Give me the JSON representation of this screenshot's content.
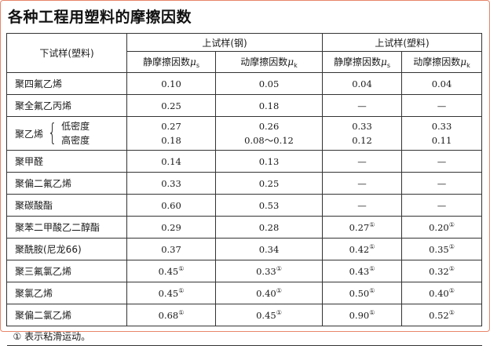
{
  "title": "各种工程用塑料的摩擦因数",
  "header": {
    "lower_sample": "下试样(塑料)",
    "upper_steel": "上试样(钢)",
    "upper_plastic": "上试样(塑料)",
    "static": "静摩擦因数",
    "dynamic": "动摩擦因数",
    "mu": "μ",
    "sub_s": "s",
    "sub_k": "k"
  },
  "rows": [
    {
      "name": "聚四氟乙烯",
      "v": [
        "0.10",
        "0.05",
        "0.04",
        "0.04"
      ],
      "fn": [
        false,
        false,
        false,
        false
      ]
    },
    {
      "name": "聚全氟乙丙烯",
      "v": [
        "0.25",
        "0.18",
        "—",
        "—"
      ],
      "fn": [
        false,
        false,
        false,
        false
      ]
    },
    {
      "name": "聚乙烯",
      "sub": [
        "低密度",
        "高密度"
      ],
      "v": [
        [
          "0.27",
          "0.18"
        ],
        [
          "0.26",
          "0.08～0.12"
        ],
        [
          "0.33",
          "0.12"
        ],
        [
          "0.33",
          "0.11"
        ]
      ]
    },
    {
      "name": "聚甲醛",
      "v": [
        "0.14",
        "0.13",
        "—",
        "—"
      ],
      "fn": [
        false,
        false,
        false,
        false
      ]
    },
    {
      "name": "聚偏二氟乙烯",
      "v": [
        "0.33",
        "0.25",
        "—",
        "—"
      ],
      "fn": [
        false,
        false,
        false,
        false
      ]
    },
    {
      "name": "聚碳酸酯",
      "v": [
        "0.60",
        "0.53",
        "—",
        "—"
      ],
      "fn": [
        false,
        false,
        false,
        false
      ]
    },
    {
      "name": "聚苯二甲酸乙二醇酯",
      "v": [
        "0.29",
        "0.28",
        "0.27",
        "0.20"
      ],
      "fn": [
        false,
        false,
        true,
        true
      ]
    },
    {
      "name": "聚酰胺(尼龙66)",
      "v": [
        "0.37",
        "0.34",
        "0.42",
        "0.35"
      ],
      "fn": [
        false,
        false,
        true,
        true
      ]
    },
    {
      "name": "聚三氟氯乙烯",
      "v": [
        "0.45",
        "0.33",
        "0.43",
        "0.32"
      ],
      "fn": [
        true,
        true,
        true,
        true
      ]
    },
    {
      "name": "聚氯乙烯",
      "v": [
        "0.45",
        "0.40",
        "0.50",
        "0.40"
      ],
      "fn": [
        true,
        true,
        true,
        true
      ]
    },
    {
      "name": "聚偏二氯乙烯",
      "v": [
        "0.68",
        "0.45",
        "0.90",
        "0.52"
      ],
      "fn": [
        true,
        true,
        true,
        true
      ]
    }
  ],
  "footnote_mark": "①",
  "footnote": "① 表示粘滑运动。"
}
